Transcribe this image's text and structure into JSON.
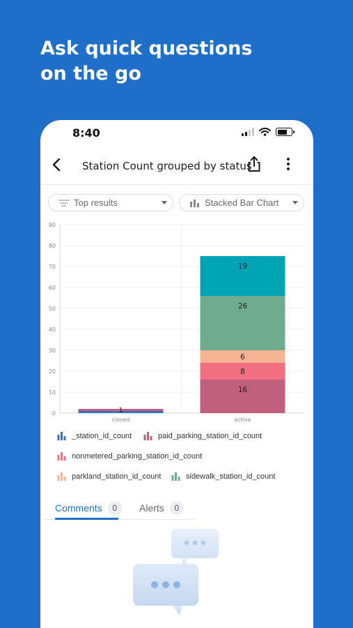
{
  "headline": {
    "line1": "Ask quick questions",
    "line2": "on the go"
  },
  "statusbar": {
    "time": "8:40",
    "icons": [
      "signal-icon",
      "wifi-icon",
      "battery-icon"
    ]
  },
  "appbar": {
    "title": "Station Count grouped by status",
    "back_icon": "chevron-left-icon",
    "share_icon": "share-icon",
    "more_icon": "more-vertical-icon"
  },
  "filters": {
    "result_select": "Top results",
    "chart_type_select": "Stacked Bar Chart"
  },
  "chart_data": {
    "type": "bar",
    "stacked": true,
    "categories": [
      "closed",
      "active"
    ],
    "series": [
      {
        "name": "_station_id_count",
        "color": "#3d6fb8",
        "values": [
          1,
          0
        ]
      },
      {
        "name": "paid_parking_station_id_count",
        "color": "#c1607e",
        "values": [
          1,
          16
        ]
      },
      {
        "name": "nonmetered_parking_station_id_count",
        "color": "#f26f7f",
        "values": [
          0,
          8
        ]
      },
      {
        "name": "parkland_station_id_count",
        "color": "#f5b394",
        "values": [
          0,
          6
        ]
      },
      {
        "name": "sidewalk_station_id_count",
        "color": "#6fac8f",
        "values": [
          0,
          26
        ]
      },
      {
        "name": "",
        "color": "#00a4b4",
        "values": [
          0,
          19
        ]
      }
    ],
    "data_labels": [
      {
        "category": "closed",
        "text": "1"
      },
      {
        "category": "active",
        "text": "19"
      },
      {
        "category": "active",
        "text": "26"
      },
      {
        "category": "active",
        "text": "6"
      },
      {
        "category": "active",
        "text": "8"
      },
      {
        "category": "active",
        "text": "16"
      }
    ],
    "ylim": [
      0,
      90
    ],
    "yticks": [
      "0",
      "10",
      "20",
      "30",
      "40",
      "50",
      "60",
      "70",
      "80",
      "90"
    ],
    "grid": true,
    "legend": "bottom"
  },
  "legend": [
    {
      "label": "_station_id_count",
      "color": "#3d6fb8"
    },
    {
      "label": "paid_parking_station_id_count",
      "color": "#c1607e"
    },
    {
      "label": "nonmetered_parking_station_id_count",
      "color": "#f26f7f"
    },
    {
      "label": "parkland_station_id_count",
      "color": "#f5b394"
    },
    {
      "label": "sidewalk_station_id_count",
      "color": "#6fac8f"
    }
  ],
  "tabs": [
    {
      "label": "Comments",
      "count": "0",
      "active": true
    },
    {
      "label": "Alerts",
      "count": "0",
      "active": false
    }
  ],
  "colors": {
    "brand": "#1f6fc9",
    "accent": "#1f6fc9"
  }
}
